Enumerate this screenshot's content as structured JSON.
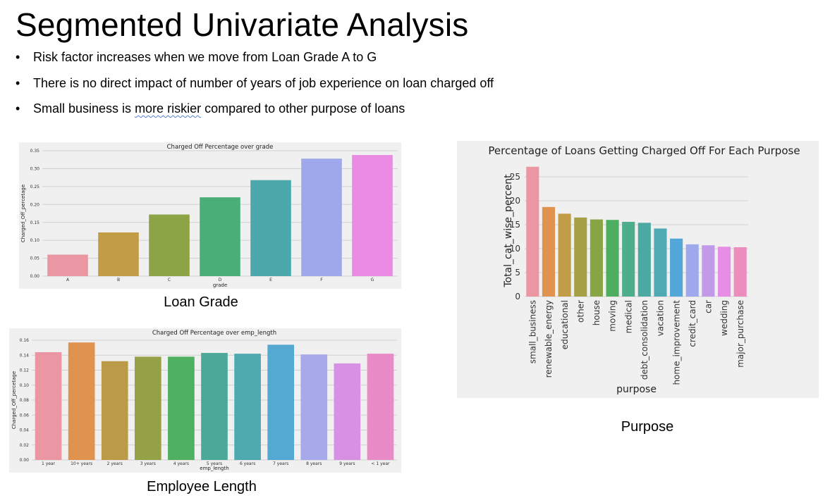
{
  "slide": {
    "title": "Segmented Univariate Analysis",
    "bullets": [
      {
        "before": "Risk factor increases when we move from Loan Grade A to G",
        "highlight": "",
        "after": ""
      },
      {
        "before": "There is no direct impact of number of years of job experience on loan charged off",
        "highlight": "",
        "after": ""
      },
      {
        "before": "Small business is ",
        "highlight": "more riskier",
        "after": " compared to other purpose of loans"
      }
    ]
  },
  "captions": {
    "grade": "Loan Grade",
    "emp": "Employee Length",
    "purpose": "Purpose"
  },
  "chart_data": [
    {
      "id": "grade",
      "type": "bar",
      "title": "Charged Off Percentage over grade",
      "xlabel": "grade",
      "ylabel": "Charged_Off_percetage",
      "categories": [
        "A",
        "B",
        "C",
        "D",
        "E",
        "F",
        "G"
      ],
      "values": [
        0.06,
        0.122,
        0.172,
        0.22,
        0.268,
        0.328,
        0.338
      ],
      "ylim": [
        0,
        0.35
      ],
      "yticks": [
        "0.00",
        "0.05",
        "0.10",
        "0.15",
        "0.20",
        "0.25",
        "0.30",
        "0.35"
      ],
      "grid": true,
      "colors": [
        "#ea96a3",
        "#c39c47",
        "#8ca346",
        "#4aae78",
        "#4ca9ab",
        "#a0a8ec",
        "#ea8ae2"
      ]
    },
    {
      "id": "emp",
      "type": "bar",
      "title": "Charged Off Percentage over emp_length",
      "xlabel": "emp_length",
      "ylabel": "Charged_Off_percetage",
      "categories": [
        "1 year",
        "10+ years",
        "2 years",
        "3 years",
        "4 years",
        "5 years",
        "6 years",
        "7 years",
        "8 years",
        "9 years",
        "< 1 year"
      ],
      "values": [
        0.144,
        0.157,
        0.132,
        0.138,
        0.138,
        0.143,
        0.142,
        0.154,
        0.141,
        0.129,
        0.142
      ],
      "ylim": [
        0,
        0.16
      ],
      "yticks": [
        "0.00",
        "0.02",
        "0.04",
        "0.06",
        "0.08",
        "0.10",
        "0.12",
        "0.14",
        "0.16"
      ],
      "grid": true,
      "colors": [
        "#ea96a3",
        "#e0934f",
        "#bc9b48",
        "#95a146",
        "#4eb060",
        "#4ca99a",
        "#4faab0",
        "#53a9d2",
        "#a7a9eb",
        "#d691e4",
        "#e88bc6"
      ]
    },
    {
      "id": "purpose",
      "type": "bar",
      "title": "Percentage of Loans Getting Charged Off For Each Purpose",
      "xlabel": "purpose",
      "ylabel": "Total_cat_wise_percent",
      "categories": [
        "small_business",
        "renewable_energy",
        "educational",
        "other",
        "house",
        "moving",
        "medical",
        "debt_consolidation",
        "vacation",
        "home_improvement",
        "credit_card",
        "car",
        "wedding",
        "major_purchase"
      ],
      "values": [
        27.1,
        18.7,
        17.3,
        16.5,
        16.1,
        16.0,
        15.6,
        15.4,
        14.2,
        12.1,
        10.9,
        10.7,
        10.4,
        10.3
      ],
      "ylim": [
        0,
        27.5
      ],
      "yticks": [
        "0",
        "5",
        "10",
        "15",
        "20",
        "25"
      ],
      "grid": true,
      "colors": [
        "#ea96a3",
        "#e0934f",
        "#c29c47",
        "#a59f45",
        "#88a546",
        "#4dae61",
        "#4ead8b",
        "#4ca9a2",
        "#4faab4",
        "#53a6d8",
        "#9ea8ec",
        "#c19be9",
        "#e68de6",
        "#ec8dbd"
      ]
    }
  ]
}
